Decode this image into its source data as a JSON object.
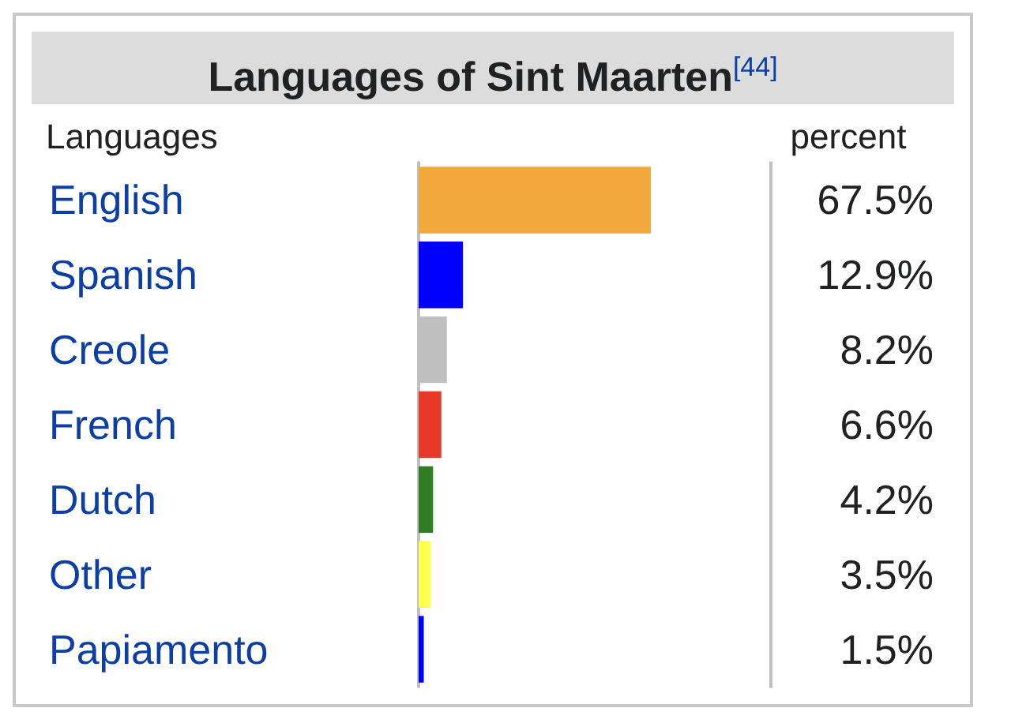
{
  "chart_data": {
    "type": "bar",
    "orientation": "horizontal",
    "title": "Languages of Sint Maarten$^{[44]}$",
    "ylabel": "Languages",
    "xlabel": "percent",
    "categories": [
      "English",
      "Spanish",
      "Creole",
      "French",
      "Dutch",
      "Other",
      "Papiamento"
    ],
    "values": [
      67.5,
      12.9,
      8.2,
      6.6,
      4.2,
      3.5,
      1.5
    ],
    "colors": [
      "#f2a93b",
      "#0000ff",
      "#c0c0c0",
      "#e8382a",
      "#2f7d23",
      "#ffff4d",
      "#0000ff"
    ],
    "value_labels": [
      "67.5%",
      "12.9%",
      "8.2%",
      "6.6%",
      "4.2%",
      "3.5%",
      "1.5%"
    ]
  }
}
